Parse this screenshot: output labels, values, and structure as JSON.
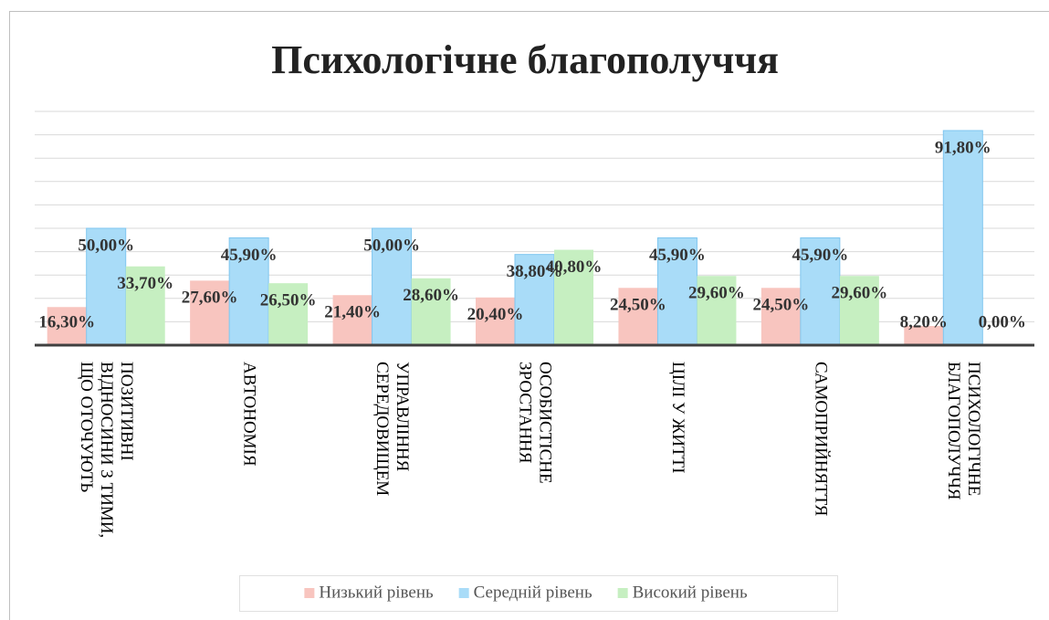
{
  "chart_data": {
    "type": "bar",
    "title": "Психологічне благополуччя",
    "categories": [
      "ПОЗИТИВНІ ВІДНОСИНИ З ТИМИ, ЩО ОТОЧУЮТЬ",
      "АВТОНОМІЯ",
      "УПРАВЛІННЯ СЕРЕДОВИЩЕМ",
      "ОСОБИСТІСНЕ ЗРОСТАННЯ",
      "ЦІЛІ У ЖИТТІ",
      "САМОПРИЙНЯТТЯ",
      "ПСИХОЛОГІЧНЕ БЛАГОПОЛУЧЧЯ"
    ],
    "series": [
      {
        "name": "Низький рівень",
        "color": "#f8c5bf",
        "values": [
          16.3,
          27.6,
          21.4,
          20.4,
          24.5,
          24.5,
          8.2
        ],
        "value_labels": [
          "16,30%",
          "27,60%",
          "21,40%",
          "20,40%",
          "24,50%",
          "24,50%",
          "8,20%"
        ]
      },
      {
        "name": "Середній рівень",
        "color": "#a9dcf8",
        "values": [
          50,
          45.9,
          50,
          38.8,
          45.9,
          45.9,
          91.8
        ],
        "value_labels": [
          "50,00%",
          "45,90%",
          "50,00%",
          "38,80%",
          "45,90%",
          "45,90%",
          "91,80%"
        ]
      },
      {
        "name": "Високий рівень",
        "color": "#c6efc1",
        "values": [
          33.7,
          26.5,
          28.6,
          40.8,
          29.6,
          29.6,
          0
        ],
        "value_labels": [
          "33,70%",
          "26,50%",
          "28,60%",
          "40,80%",
          "29,60%",
          "29,60%",
          "0,00%"
        ]
      }
    ],
    "ylim": [
      0,
      100
    ],
    "yticks": [
      0,
      10,
      20,
      30,
      40,
      50,
      60,
      70,
      80,
      90,
      100
    ],
    "grid": true,
    "legend": "bottom"
  }
}
